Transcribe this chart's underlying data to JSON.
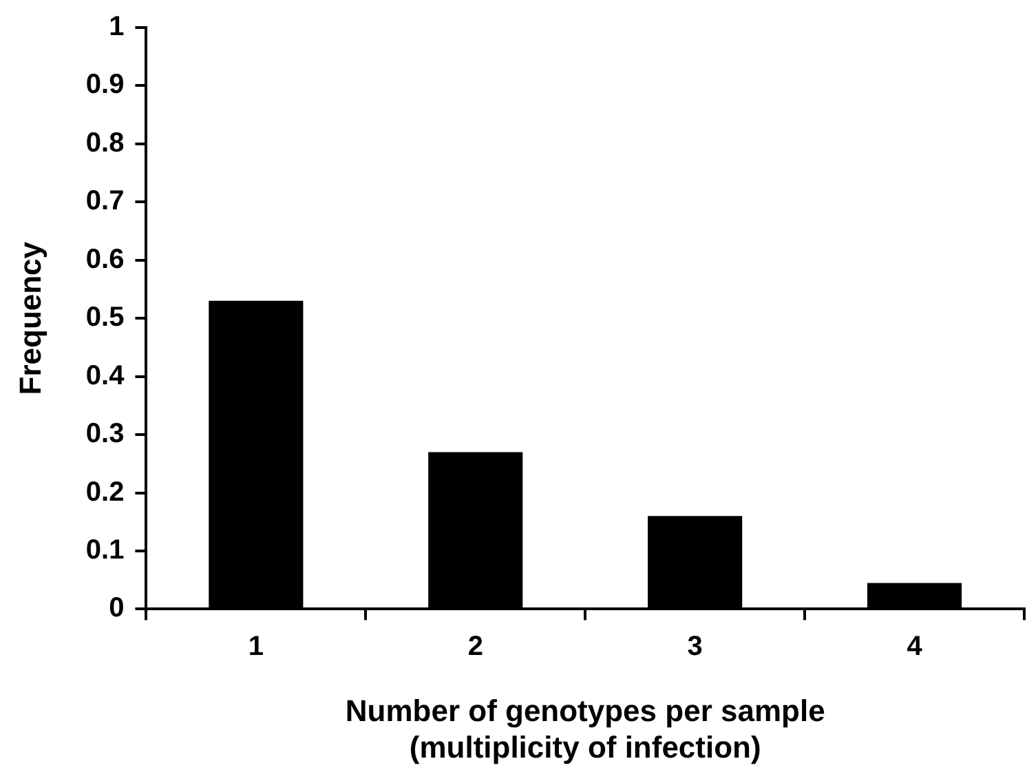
{
  "chart_data": {
    "type": "bar",
    "categories": [
      "1",
      "2",
      "3",
      "4"
    ],
    "values": [
      0.53,
      0.27,
      0.16,
      0.045
    ],
    "color": "#000000",
    "xlabel": "Number of genotypes per sample\n(multiplicity of infection)",
    "ylabel": "Frequency",
    "ylim": [
      0,
      1
    ],
    "yticks": [
      0,
      0.1,
      0.2,
      0.3,
      0.4,
      0.5,
      0.6,
      0.7,
      0.8,
      0.9,
      1
    ],
    "grid": false,
    "legend": false
  }
}
